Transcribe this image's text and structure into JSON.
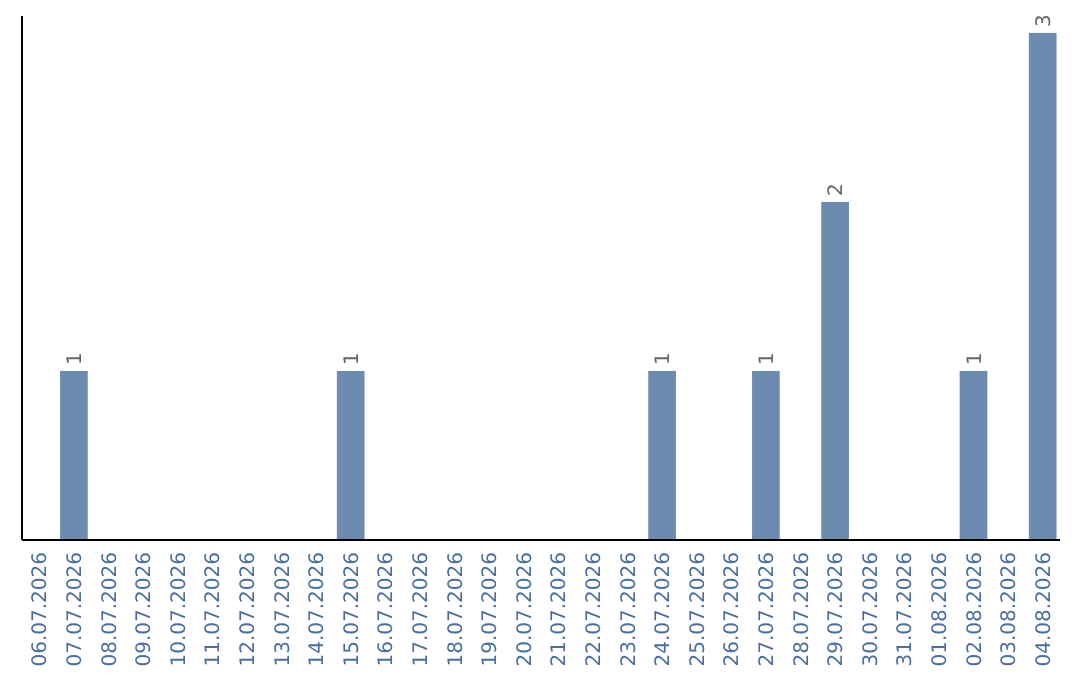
{
  "chart_data": {
    "type": "bar",
    "categories": [
      "06.07.2026",
      "07.07.2026",
      "08.07.2026",
      "09.07.2026",
      "10.07.2026",
      "11.07.2026",
      "12.07.2026",
      "13.07.2026",
      "14.07.2026",
      "15.07.2026",
      "16.07.2026",
      "17.07.2026",
      "18.07.2026",
      "19.07.2026",
      "20.07.2026",
      "21.07.2026",
      "22.07.2026",
      "23.07.2026",
      "24.07.2026",
      "25.07.2026",
      "26.07.2026",
      "27.07.2026",
      "28.07.2026",
      "29.07.2026",
      "30.07.2026",
      "31.07.2026",
      "01.08.2026",
      "02.08.2026",
      "03.08.2026",
      "04.08.2026"
    ],
    "values": [
      0,
      1,
      0,
      0,
      0,
      0,
      0,
      0,
      0,
      1,
      0,
      0,
      0,
      0,
      0,
      0,
      0,
      0,
      1,
      0,
      0,
      1,
      0,
      2,
      0,
      0,
      0,
      1,
      0,
      3
    ],
    "value_labels": [
      null,
      "1",
      null,
      null,
      null,
      null,
      null,
      null,
      null,
      "1",
      null,
      null,
      null,
      null,
      null,
      null,
      null,
      null,
      "1",
      null,
      null,
      "1",
      null,
      "2",
      null,
      null,
      null,
      "1",
      null,
      "3"
    ],
    "color": "#6b8cae",
    "ylim": [
      0,
      3.1
    ],
    "tick_labels": "x"
  }
}
